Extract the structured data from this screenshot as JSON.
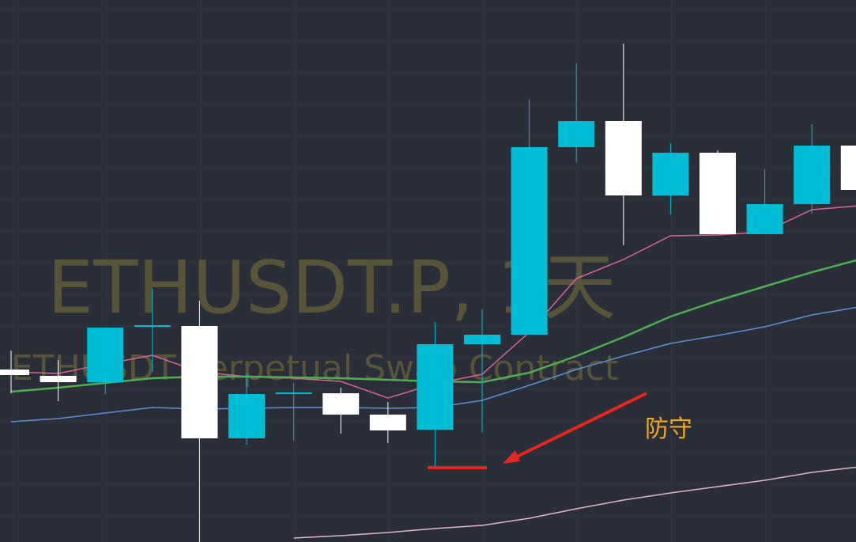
{
  "chart_data": {
    "type": "candlestick",
    "watermark": "ETHUSDT.P, 1天",
    "subtitle": "ETHUSDT Perpetual Swap Contract",
    "annotation": "防守",
    "ylim": [
      0,
      685
    ],
    "up_color": "#00bcd4",
    "down_color": "#ffffff",
    "open": [
      218,
      210,
      202,
      272,
      273,
      131,
      188,
      188,
      161,
      142,
      250,
      262,
      499,
      532,
      438,
      492,
      389,
      427,
      501
    ],
    "high": [
      242,
      230,
      271,
      320,
      305,
      213,
      201,
      195,
      177,
      278,
      294,
      559,
      605,
      630,
      504,
      495,
      471,
      528,
      501
    ],
    "low": [
      188,
      178,
      187,
      215,
      0,
      123,
      128,
      137,
      125,
      95,
      139,
      262,
      480,
      375,
      414,
      389,
      389,
      415,
      445
    ],
    "close": [
      211,
      202,
      271,
      274,
      131,
      187,
      189,
      161,
      141,
      250,
      262,
      499,
      532,
      438,
      492,
      389,
      427,
      501,
      445
    ],
    "series": [
      {
        "color": "#e0609a",
        "values": [
          215,
          213,
          225,
          236,
          215,
          209,
          207,
          203,
          182,
          200,
          212,
          265,
          333,
          357,
          387,
          388,
          392,
          420,
          425
        ]
      },
      {
        "color": "#4caf50",
        "values": [
          190,
          195,
          201,
          207,
          209,
          209,
          208,
          207,
          205,
          203,
          202,
          214,
          235,
          259,
          285,
          305,
          323,
          341,
          357
        ]
      },
      {
        "color": "#5b8fd6",
        "values": [
          152,
          156,
          163,
          170,
          168,
          169,
          170,
          170,
          169,
          170,
          179,
          198,
          218,
          235,
          251,
          261,
          272,
          287,
          297
        ]
      },
      {
        "color": "#e8b4c8",
        "values": [
          null,
          null,
          null,
          null,
          null,
          null,
          5,
          8,
          12,
          17,
          21,
          30,
          42,
          53,
          62,
          70,
          78,
          88,
          95
        ]
      }
    ],
    "support_level": 94,
    "support_color": "#e8261c"
  }
}
